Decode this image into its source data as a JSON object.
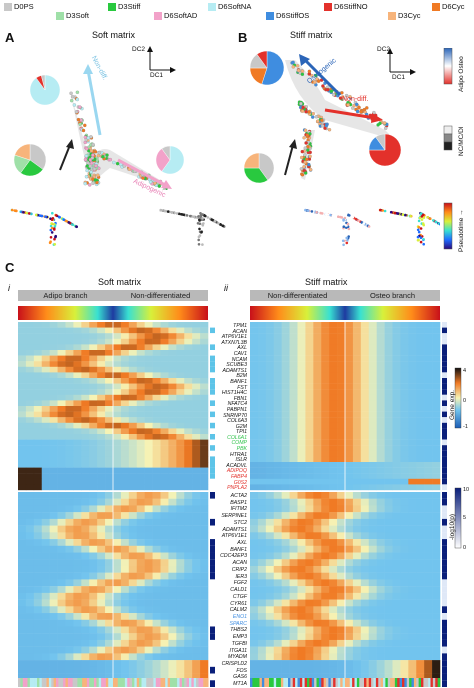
{
  "legend": {
    "items": [
      {
        "label": "D0PS",
        "color": "#c8c8c8"
      },
      {
        "label": "D3Soft",
        "color": "#9fe0a8"
      },
      {
        "label": "D3Stiff",
        "color": "#29c93f"
      },
      {
        "label": "D6SoftAD",
        "color": "#f2a2c9"
      },
      {
        "label": "D6SoftNA",
        "color": "#b6ecf3"
      },
      {
        "label": "D6StiffOS",
        "color": "#3f8de0"
      },
      {
        "label": "D6StiffNO",
        "color": "#e3312b"
      },
      {
        "label": "D3Cyc",
        "color": "#f7b47b"
      },
      {
        "label": "D6Cyc",
        "color": "#f07a24"
      }
    ]
  },
  "panel_a": {
    "letter": "A",
    "title": "Soft matrix",
    "axis_y": "DC2",
    "axis_x": "DC1",
    "branch_up": "Non-diff.",
    "branch_down": "Adipogenic"
  },
  "panel_b": {
    "letter": "B",
    "title": "Stiff matrix",
    "axis_y": "DC2",
    "axis_x": "DC1",
    "branch_up": "Osteogenic",
    "branch_right": "Non-diff."
  },
  "side_legends": {
    "adipo_osteo": "Adipo Osteo",
    "nc_mc_di": "NC/MC/DI",
    "pseudotime": "Pseudotime →"
  },
  "panel_c": {
    "letter": "C",
    "sub_i": "i",
    "sub_ii": "ii",
    "soft_title": "Soft matrix",
    "stiff_title": "Stiff matrix",
    "soft_branches": [
      "Adipo branch",
      "Non-differentiated"
    ],
    "stiff_branches": [
      "Non-differentiated",
      "Osteo branch"
    ],
    "genes_top": [
      {
        "name": "TPM1",
        "color": "#111111"
      },
      {
        "name": "ACAN",
        "color": "#111111"
      },
      {
        "name": "ATP6V1E1",
        "color": "#111111"
      },
      {
        "name": "ATXN7L3B",
        "color": "#111111"
      },
      {
        "name": "AXL",
        "color": "#111111"
      },
      {
        "name": "CAV1",
        "color": "#111111"
      },
      {
        "name": "NCAM",
        "color": "#111111"
      },
      {
        "name": "SCUBE3",
        "color": "#111111"
      },
      {
        "name": "ADAMTS1",
        "color": "#111111"
      },
      {
        "name": "B2M",
        "color": "#111111"
      },
      {
        "name": "BANF1",
        "color": "#111111"
      },
      {
        "name": "FST",
        "color": "#111111"
      },
      {
        "name": "HIST1H4C",
        "color": "#111111"
      },
      {
        "name": "FBN1",
        "color": "#111111"
      },
      {
        "name": "NFATC4",
        "color": "#111111"
      },
      {
        "name": "PABPN1",
        "color": "#111111"
      },
      {
        "name": "SNRNP70",
        "color": "#111111"
      },
      {
        "name": "COL6A3",
        "color": "#111111"
      },
      {
        "name": "G2M",
        "color": "#111111"
      },
      {
        "name": "TPI1",
        "color": "#111111"
      },
      {
        "name": "COL6A1",
        "color": "#2fc24a"
      },
      {
        "name": "COMP",
        "color": "#2fc24a"
      },
      {
        "name": "PBK",
        "color": "#2fc24a"
      },
      {
        "name": "HTRA1",
        "color": "#111111"
      },
      {
        "name": "ISLR",
        "color": "#111111"
      },
      {
        "name": "ACADVL",
        "color": "#111111"
      },
      {
        "name": "ADIPOQ",
        "color": "#e3312b"
      },
      {
        "name": "FABP4",
        "color": "#e3312b"
      },
      {
        "name": "G0S2",
        "color": "#e3312b"
      },
      {
        "name": "PNPLA2",
        "color": "#e3312b"
      }
    ],
    "genes_bottom": [
      {
        "name": "ACTA2",
        "color": "#111111"
      },
      {
        "name": "BASP1",
        "color": "#111111"
      },
      {
        "name": "IFITM2",
        "color": "#111111"
      },
      {
        "name": "SERPINE1",
        "color": "#111111"
      },
      {
        "name": "STC2",
        "color": "#111111"
      },
      {
        "name": "ADAMTS1",
        "color": "#111111"
      },
      {
        "name": "ATP6V1E1",
        "color": "#111111"
      },
      {
        "name": "AXL",
        "color": "#111111"
      },
      {
        "name": "BANF1",
        "color": "#111111"
      },
      {
        "name": "CDC42EP3",
        "color": "#111111"
      },
      {
        "name": "ACAN",
        "color": "#111111"
      },
      {
        "name": "CRIP2",
        "color": "#111111"
      },
      {
        "name": "IER3",
        "color": "#111111"
      },
      {
        "name": "FGF2",
        "color": "#111111"
      },
      {
        "name": "CALD1",
        "color": "#111111"
      },
      {
        "name": "CTGF",
        "color": "#111111"
      },
      {
        "name": "CYR61",
        "color": "#111111"
      },
      {
        "name": "CALM2",
        "color": "#111111"
      },
      {
        "name": "ENO1",
        "color": "#3f8de0"
      },
      {
        "name": "SPARC",
        "color": "#3f8de0"
      },
      {
        "name": "THBS2",
        "color": "#111111"
      },
      {
        "name": "EMP3",
        "color": "#111111"
      },
      {
        "name": "TGFBI",
        "color": "#111111"
      },
      {
        "name": "ITGA11",
        "color": "#111111"
      },
      {
        "name": "MYADM",
        "color": "#111111"
      },
      {
        "name": "CRISPLD2",
        "color": "#111111"
      },
      {
        "name": "FOS",
        "color": "#111111"
      },
      {
        "name": "GAS6",
        "color": "#111111"
      },
      {
        "name": "MT1A",
        "color": "#111111"
      }
    ],
    "gene_exp_label": "Gene exp.",
    "gene_exp_ticks": [
      "4",
      "0",
      "-1"
    ],
    "pvalue_label": "-log10(p)",
    "pvalue_ticks": [
      "10",
      "5",
      "0"
    ]
  }
}
